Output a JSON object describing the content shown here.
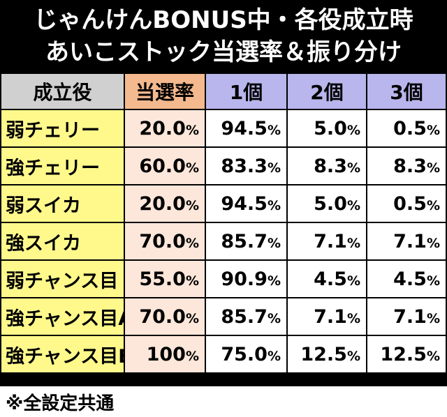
{
  "title": {
    "line1": "じゃんけんBONUS中・各役成立時",
    "line2": "あいこストック当選率＆振り分け"
  },
  "table": {
    "headers": {
      "role": "成立役",
      "rate": "当選率",
      "col1": "1個",
      "col2": "2個",
      "col3": "3個"
    },
    "percent_symbol": "%",
    "rows": [
      {
        "role": "弱チェリー",
        "rate": "20.0",
        "v1": "94.5",
        "v2": "5.0",
        "v3": "0.5"
      },
      {
        "role": "強チェリー",
        "rate": "60.0",
        "v1": "83.3",
        "v2": "8.3",
        "v3": "8.3"
      },
      {
        "role": "弱スイカ",
        "rate": "20.0",
        "v1": "94.5",
        "v2": "5.0",
        "v3": "0.5"
      },
      {
        "role": "強スイカ",
        "rate": "70.0",
        "v1": "85.7",
        "v2": "7.1",
        "v3": "7.1"
      },
      {
        "role": "弱チャンス目",
        "rate": "55.0",
        "v1": "90.9",
        "v2": "4.5",
        "v3": "4.5"
      },
      {
        "role": "強チャンス目A",
        "rate": "70.0",
        "v1": "85.7",
        "v2": "7.1",
        "v3": "7.1"
      },
      {
        "role": "強チャンス目B",
        "rate": "100",
        "v1": "75.0",
        "v2": "12.5",
        "v3": "12.5"
      }
    ]
  },
  "footer": {
    "note": "※全設定共通"
  },
  "colors": {
    "role_bg": "#fff98c",
    "rate_header_bg": "#f4b98e",
    "rate_cell_bg": "#fde7da",
    "split_header_bg": "#b8b6ec",
    "role_header_bg": "#d0d0d0",
    "title_bg": "#000000"
  }
}
